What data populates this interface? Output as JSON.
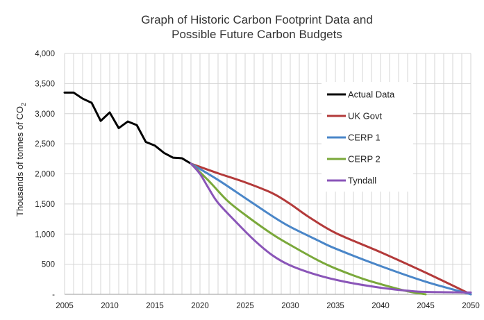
{
  "chart_data": {
    "type": "line",
    "title_line1": "Graph of Historic Carbon Footprint Data and",
    "title_line2": "Possible Future Carbon Budgets",
    "ylabel": "Thousands of tonnes of CO",
    "ylabel_sub": "2",
    "xlabel": "",
    "xlim": [
      2005,
      2050
    ],
    "ylim": [
      0,
      4000
    ],
    "x_ticks": [
      2005,
      2010,
      2015,
      2020,
      2025,
      2030,
      2035,
      2040,
      2045,
      2050
    ],
    "y_ticks": [
      0,
      500,
      1000,
      1500,
      2000,
      2500,
      3000,
      3500,
      4000
    ],
    "y_tick_labels": [
      "-",
      "500",
      "1,000",
      "1,500",
      "2,000",
      "2,500",
      "3,000",
      "3,500",
      "4,000"
    ],
    "grid": "vertical-minor-yearly-and-horizontal",
    "legend_position": "right",
    "series": [
      {
        "name": "Actual Data",
        "color": "#000000",
        "points": [
          [
            2005,
            3350
          ],
          [
            2006,
            3350
          ],
          [
            2007,
            3250
          ],
          [
            2008,
            3180
          ],
          [
            2009,
            2880
          ],
          [
            2010,
            3020
          ],
          [
            2011,
            2760
          ],
          [
            2012,
            2870
          ],
          [
            2013,
            2810
          ],
          [
            2014,
            2530
          ],
          [
            2015,
            2470
          ],
          [
            2016,
            2350
          ],
          [
            2017,
            2270
          ],
          [
            2018,
            2260
          ],
          [
            2019,
            2170
          ]
        ]
      },
      {
        "name": "UK Govt",
        "color": "#b33a3a",
        "points": [
          [
            2019,
            2170
          ],
          [
            2022,
            2010
          ],
          [
            2025,
            1860
          ],
          [
            2028,
            1680
          ],
          [
            2030,
            1500
          ],
          [
            2032,
            1290
          ],
          [
            2035,
            1020
          ],
          [
            2040,
            700
          ],
          [
            2045,
            360
          ],
          [
            2050,
            0
          ]
        ]
      },
      {
        "name": "CERP 1",
        "color": "#4a86c8",
        "points": [
          [
            2019,
            2170
          ],
          [
            2022,
            1900
          ],
          [
            2025,
            1600
          ],
          [
            2028,
            1300
          ],
          [
            2030,
            1120
          ],
          [
            2033,
            900
          ],
          [
            2035,
            760
          ],
          [
            2040,
            470
          ],
          [
            2045,
            210
          ],
          [
            2050,
            0
          ]
        ]
      },
      {
        "name": "CERP 2",
        "color": "#7aa83a",
        "points": [
          [
            2019,
            2170
          ],
          [
            2021,
            1880
          ],
          [
            2023,
            1560
          ],
          [
            2025,
            1320
          ],
          [
            2028,
            1000
          ],
          [
            2030,
            820
          ],
          [
            2033,
            570
          ],
          [
            2035,
            430
          ],
          [
            2038,
            260
          ],
          [
            2040,
            170
          ],
          [
            2043,
            50
          ],
          [
            2045,
            0
          ]
        ]
      },
      {
        "name": "Tyndall",
        "color": "#8a55b8",
        "points": [
          [
            2019,
            2170
          ],
          [
            2020,
            2000
          ],
          [
            2021,
            1750
          ],
          [
            2022,
            1520
          ],
          [
            2024,
            1200
          ],
          [
            2026,
            900
          ],
          [
            2028,
            650
          ],
          [
            2030,
            480
          ],
          [
            2033,
            320
          ],
          [
            2036,
            210
          ],
          [
            2040,
            110
          ],
          [
            2043,
            60
          ],
          [
            2045,
            40
          ],
          [
            2050,
            30
          ]
        ]
      }
    ]
  }
}
